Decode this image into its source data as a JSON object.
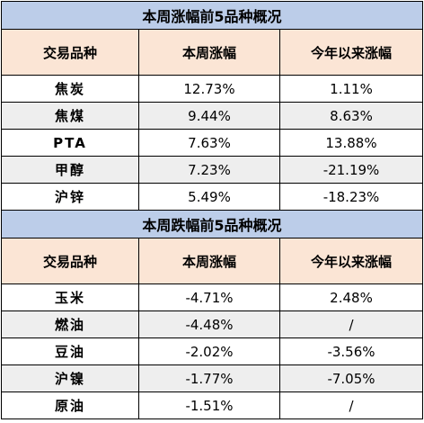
{
  "rise_section": {
    "title": "本周涨幅前5品种概况",
    "headers": [
      "交易品种",
      "本周涨幅",
      "今年以来涨幅"
    ],
    "rows": [
      [
        "焦炭",
        "12.73%",
        "1.11%"
      ],
      [
        "焦煤",
        "9.44%",
        "8.63%"
      ],
      [
        "PTA",
        "7.63%",
        "13.88%"
      ],
      [
        "甲醇",
        "7.23%",
        "-21.19%"
      ],
      [
        "沪锌",
        "5.49%",
        "-18.23%"
      ]
    ]
  },
  "fall_section": {
    "title": "本周跌幅前5品种概况",
    "headers": [
      "交易品种",
      "本周涨幅",
      "今年以来涨幅"
    ],
    "rows": [
      [
        "玉米",
        "-4.71%",
        "2.48%"
      ],
      [
        "燃油",
        "-4.48%",
        "/"
      ],
      [
        "豆油",
        "-2.02%",
        "-3.56%"
      ],
      [
        "沪镍",
        "-1.77%",
        "-7.05%"
      ],
      [
        "原油",
        "-1.51%",
        "/"
      ]
    ]
  },
  "colors": {
    "title_bg": "#bccde9",
    "header_bg": "#fbe5d5",
    "stripe_bg": "#eeeeee",
    "border": "#000000"
  }
}
